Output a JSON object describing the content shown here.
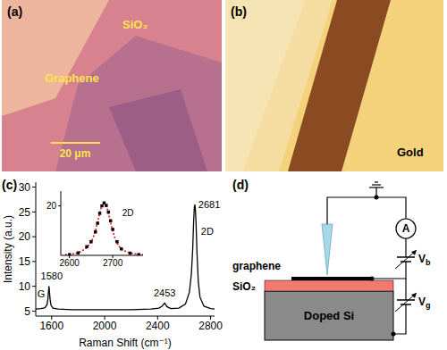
{
  "chart_data": [
    {
      "type": "line",
      "x_label": "Raman Shift (cm⁻¹)",
      "y_label": "Intensity (a.u.)",
      "x": [
        1480,
        1520,
        1550,
        1565,
        1572,
        1577,
        1580,
        1583,
        1588,
        1595,
        1610,
        1650,
        1750,
        1900,
        2050,
        2200,
        2350,
        2410,
        2435,
        2445,
        2453,
        2461,
        2470,
        2500,
        2560,
        2610,
        2640,
        2655,
        2665,
        2672,
        2677,
        2681,
        2685,
        2690,
        2697,
        2707,
        2720,
        2750,
        2800,
        2830
      ],
      "values": [
        5.4,
        5.5,
        5.7,
        6.3,
        7.5,
        9.2,
        10,
        9.1,
        7.4,
        6.2,
        5.6,
        5.4,
        5.3,
        5.3,
        5.3,
        5.3,
        5.4,
        5.6,
        6.0,
        6.4,
        6.6,
        6.3,
        5.9,
        5.5,
        5.6,
        6.4,
        8.8,
        12.5,
        17.5,
        23,
        25.8,
        26.5,
        25.6,
        23,
        17,
        11,
        7.8,
        6.0,
        5.5,
        5.4
      ],
      "color": "#000000",
      "xlim": [
        1480,
        2830
      ],
      "ylim": [
        4,
        31
      ],
      "xticks": [
        1600,
        2000,
        2400,
        2800
      ],
      "yticks": [
        5,
        10,
        15,
        20,
        25,
        30
      ],
      "annotations": [
        {
          "text": "G",
          "x": 1520,
          "y": 8.5
        },
        {
          "text": "1580",
          "x": 1600,
          "y": 12
        },
        {
          "text": "2453",
          "x": 2453,
          "y": 8.6
        },
        {
          "text": "2681",
          "x": 2790,
          "y": 26.5
        },
        {
          "text": "2D",
          "x": 2775,
          "y": 21
        }
      ]
    },
    {
      "type": "scatter",
      "series": [
        {
          "type": "scatter",
          "marker": "square",
          "color": "#000000",
          "x": [
            2600,
            2620,
            2640,
            2650,
            2660,
            2665,
            2670,
            2675,
            2680,
            2685,
            2690,
            2695,
            2700,
            2710,
            2720,
            2740,
            2760
          ],
          "values": [
            0.3,
            1.0,
            3.5,
            5.5,
            9.5,
            13,
            17,
            20,
            21.2,
            20.2,
            17.5,
            14,
            10.5,
            5.5,
            2.6,
            0.9,
            0.3
          ]
        },
        {
          "type": "line",
          "line_style": "dotted",
          "color": "#ff0000",
          "x": [
            2590,
            2610,
            2630,
            2645,
            2655,
            2662,
            2668,
            2674,
            2680,
            2686,
            2692,
            2698,
            2705,
            2715,
            2730,
            2750,
            2770
          ],
          "values": [
            0.3,
            0.7,
            1.9,
            4.2,
            7.4,
            11.2,
            15.6,
            19.6,
            21.2,
            19.6,
            15.6,
            11.2,
            7.0,
            3.6,
            1.6,
            0.7,
            0.3
          ]
        }
      ],
      "xlim": [
        2580,
        2770
      ],
      "ylim": [
        0,
        26
      ],
      "xticks": [
        2600,
        2700
      ],
      "yticks": [
        20
      ],
      "annotations": [
        {
          "text": "2D",
          "x": 2735,
          "y": 17
        }
      ]
    }
  ],
  "panels": {
    "a": {
      "label": "(a)",
      "substrate": "SiO₂",
      "flake": "Graphene",
      "scale_bar": "20 μm"
    },
    "b": {
      "label": "(b)",
      "substrate": "Gold"
    },
    "c": {
      "label": "(c)"
    },
    "d": {
      "label": "(d)",
      "graphene": "graphene",
      "oxide": "SiO₂",
      "substrate": "Doped Si",
      "ammeter": "A",
      "bias": "Vb",
      "gate": "Vg"
    }
  }
}
